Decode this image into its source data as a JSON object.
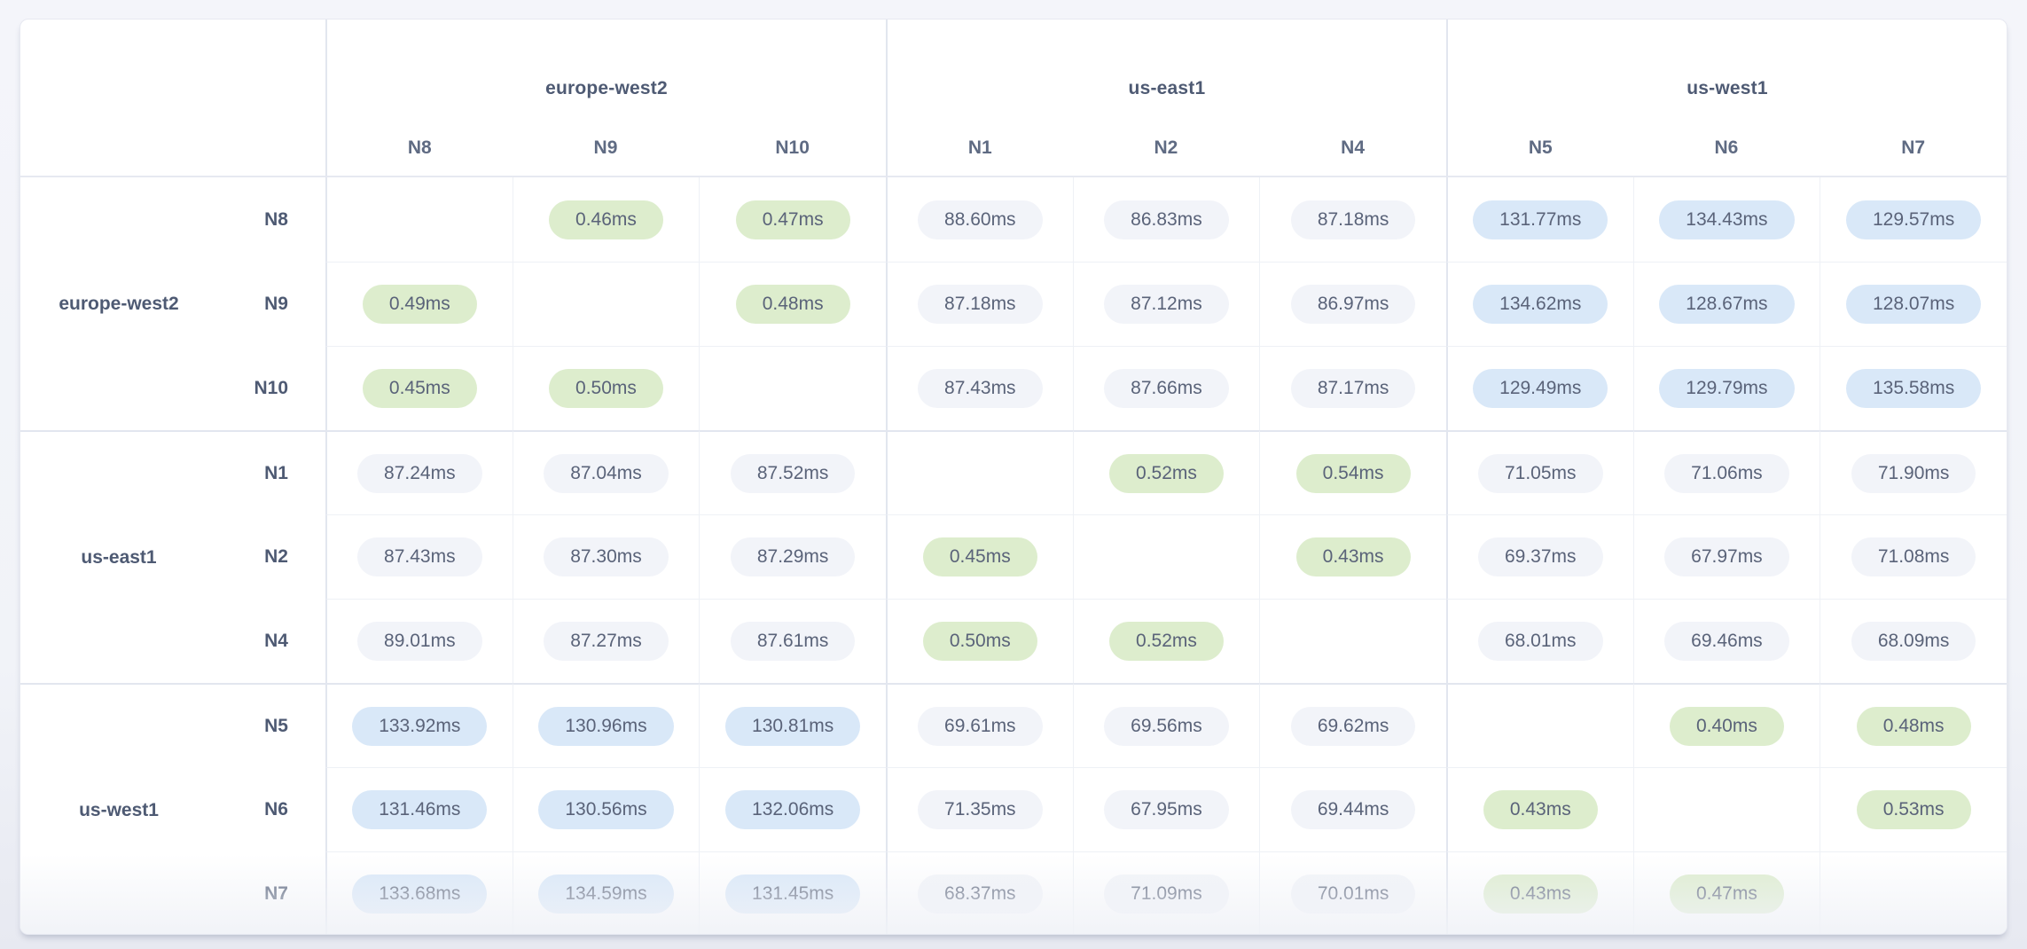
{
  "chart_data": {
    "type": "heatmap",
    "unit": "ms",
    "value_decimals": 2,
    "groups": [
      {
        "region": "europe-west2",
        "nodes": [
          "N8",
          "N9",
          "N10"
        ]
      },
      {
        "region": "us-east1",
        "nodes": [
          "N1",
          "N2",
          "N4"
        ]
      },
      {
        "region": "us-west1",
        "nodes": [
          "N5",
          "N6",
          "N7"
        ]
      }
    ],
    "row_order": [
      "N8",
      "N9",
      "N10",
      "N1",
      "N2",
      "N4",
      "N5",
      "N6",
      "N7"
    ],
    "col_order": [
      "N8",
      "N9",
      "N10",
      "N1",
      "N2",
      "N4",
      "N5",
      "N6",
      "N7"
    ],
    "values": [
      [
        null,
        0.46,
        0.47,
        88.6,
        86.83,
        87.18,
        131.77,
        134.43,
        129.57
      ],
      [
        0.49,
        null,
        0.48,
        87.18,
        87.12,
        86.97,
        134.62,
        128.67,
        128.07
      ],
      [
        0.45,
        0.5,
        null,
        87.43,
        87.66,
        87.17,
        129.49,
        129.79,
        135.58
      ],
      [
        87.24,
        87.04,
        87.52,
        null,
        0.52,
        0.54,
        71.05,
        71.06,
        71.9
      ],
      [
        87.43,
        87.3,
        87.29,
        0.45,
        null,
        0.43,
        69.37,
        67.97,
        71.08
      ],
      [
        89.01,
        87.27,
        87.61,
        0.5,
        0.52,
        null,
        68.01,
        69.46,
        68.09
      ],
      [
        133.92,
        130.96,
        130.81,
        69.61,
        69.56,
        69.62,
        null,
        0.4,
        0.48
      ],
      [
        131.46,
        130.56,
        132.06,
        71.35,
        67.95,
        69.44,
        0.43,
        null,
        0.53
      ],
      [
        133.68,
        134.59,
        131.45,
        68.37,
        71.09,
        70.01,
        0.43,
        0.47,
        null
      ]
    ],
    "tone_thresholds": {
      "low_below_ms": 1,
      "high_above_ms": 100
    },
    "tone_colors": {
      "low": "#ddedcd",
      "mid": "#f2f4f9",
      "high": "#d9e8f8"
    }
  },
  "colors": {
    "page_background_top": "#f4f5fa",
    "page_background_bottom": "#e7e9f1",
    "card_background": "#ffffff",
    "card_border": "#e7e9f1",
    "grid_inner_border": "#eef1f6",
    "grid_group_border": "#e2e6ef",
    "value_text": "#5a6379",
    "label_text": "#4e5a73",
    "column_node_text": "#5f6b83"
  }
}
